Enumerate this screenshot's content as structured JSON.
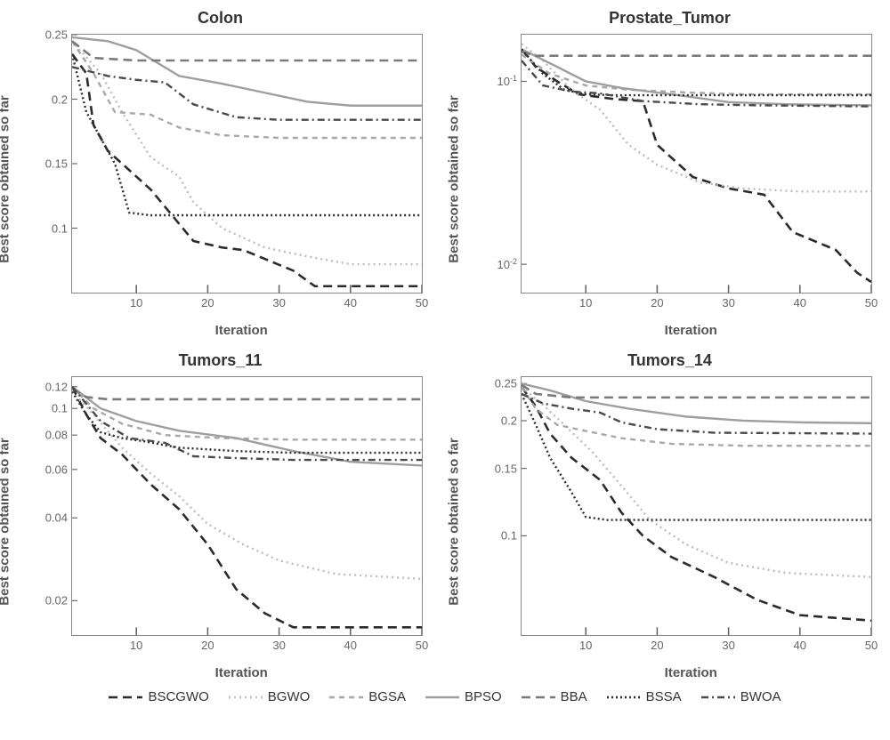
{
  "legend": {
    "items": [
      {
        "label": "BSCGWO",
        "color": "#2b2b2b",
        "dash": "10,6",
        "width": 2.6
      },
      {
        "label": "BGWO",
        "color": "#bdbdbd",
        "dash": "2,4",
        "width": 2.4
      },
      {
        "label": "BGSA",
        "color": "#a8a8a8",
        "dash": "6,5",
        "width": 2.4
      },
      {
        "label": "BPSO",
        "color": "#9e9e9e",
        "dash": "",
        "width": 2.4
      },
      {
        "label": "BBA",
        "color": "#7a7a7a",
        "dash": "10,6",
        "width": 2.6
      },
      {
        "label": "BSSA",
        "color": "#2b2b2b",
        "dash": "2,3",
        "width": 2.4
      },
      {
        "label": "BWOA",
        "color": "#4a4a4a",
        "dash": "8,4,2,4",
        "width": 2.4
      }
    ]
  },
  "xlabel": "Iteration",
  "ylabel": "Best score obtained so far",
  "x_range": [
    1,
    50
  ],
  "x_ticks": [
    10,
    20,
    30,
    40,
    50
  ],
  "panels": [
    {
      "title": "Colon",
      "scale": "linear",
      "ylim": [
        0.05,
        0.25
      ],
      "yticks": [
        0.25,
        0.2,
        0.15,
        0.1
      ],
      "yticklabels": [
        "0.25",
        "0.2",
        "0.15",
        "0.1"
      ],
      "series": {
        "BSCGWO": [
          [
            1,
            0.235
          ],
          [
            3,
            0.22
          ],
          [
            4,
            0.18
          ],
          [
            6,
            0.16
          ],
          [
            8,
            0.15
          ],
          [
            12,
            0.13
          ],
          [
            15,
            0.11
          ],
          [
            18,
            0.09
          ],
          [
            22,
            0.085
          ],
          [
            25,
            0.083
          ],
          [
            32,
            0.067
          ],
          [
            35,
            0.055
          ],
          [
            50,
            0.055
          ]
        ],
        "BGWO": [
          [
            1,
            0.245
          ],
          [
            5,
            0.22
          ],
          [
            8,
            0.19
          ],
          [
            12,
            0.155
          ],
          [
            16,
            0.14
          ],
          [
            18,
            0.12
          ],
          [
            22,
            0.1
          ],
          [
            28,
            0.085
          ],
          [
            34,
            0.078
          ],
          [
            40,
            0.072
          ],
          [
            50,
            0.072
          ]
        ],
        "BGSA": [
          [
            1,
            0.245
          ],
          [
            4,
            0.22
          ],
          [
            7,
            0.19
          ],
          [
            12,
            0.188
          ],
          [
            16,
            0.178
          ],
          [
            22,
            0.172
          ],
          [
            30,
            0.17
          ],
          [
            50,
            0.17
          ]
        ],
        "BPSO": [
          [
            1,
            0.248
          ],
          [
            6,
            0.245
          ],
          [
            10,
            0.238
          ],
          [
            16,
            0.218
          ],
          [
            22,
            0.212
          ],
          [
            28,
            0.205
          ],
          [
            34,
            0.198
          ],
          [
            40,
            0.195
          ],
          [
            50,
            0.195
          ]
        ],
        "BBA": [
          [
            1,
            0.245
          ],
          [
            4,
            0.232
          ],
          [
            10,
            0.23
          ],
          [
            50,
            0.23
          ]
        ],
        "BSSA": [
          [
            1,
            0.235
          ],
          [
            3,
            0.19
          ],
          [
            5,
            0.17
          ],
          [
            7,
            0.15
          ],
          [
            9,
            0.112
          ],
          [
            12,
            0.11
          ],
          [
            50,
            0.11
          ]
        ],
        "BWOA": [
          [
            1,
            0.225
          ],
          [
            6,
            0.218
          ],
          [
            10,
            0.215
          ],
          [
            14,
            0.213
          ],
          [
            18,
            0.196
          ],
          [
            24,
            0.186
          ],
          [
            30,
            0.184
          ],
          [
            50,
            0.184
          ]
        ]
      }
    },
    {
      "title": "Prostate_Tumor",
      "scale": "log",
      "ylim": [
        0.007,
        0.18
      ],
      "yticks": [
        0.1,
        0.01
      ],
      "yticklabels": [
        "10^-1",
        "10^-2"
      ],
      "series": {
        "BSCGWO": [
          [
            1,
            0.15
          ],
          [
            3,
            0.12
          ],
          [
            6,
            0.1
          ],
          [
            9,
            0.085
          ],
          [
            14,
            0.08
          ],
          [
            18,
            0.078
          ],
          [
            20,
            0.045
          ],
          [
            25,
            0.03
          ],
          [
            30,
            0.026
          ],
          [
            35,
            0.024
          ],
          [
            39,
            0.015
          ],
          [
            45,
            0.012
          ],
          [
            48,
            0.009
          ],
          [
            50,
            0.008
          ]
        ],
        "BGWO": [
          [
            1,
            0.16
          ],
          [
            4,
            0.13
          ],
          [
            8,
            0.09
          ],
          [
            12,
            0.07
          ],
          [
            16,
            0.045
          ],
          [
            20,
            0.035
          ],
          [
            26,
            0.028
          ],
          [
            32,
            0.026
          ],
          [
            40,
            0.025
          ],
          [
            50,
            0.025
          ]
        ],
        "BGSA": [
          [
            1,
            0.14
          ],
          [
            5,
            0.11
          ],
          [
            10,
            0.095
          ],
          [
            16,
            0.09
          ],
          [
            24,
            0.087
          ],
          [
            32,
            0.085
          ],
          [
            50,
            0.085
          ]
        ],
        "BPSO": [
          [
            1,
            0.15
          ],
          [
            6,
            0.12
          ],
          [
            10,
            0.1
          ],
          [
            15,
            0.092
          ],
          [
            22,
            0.085
          ],
          [
            30,
            0.077
          ],
          [
            38,
            0.075
          ],
          [
            50,
            0.074
          ]
        ],
        "BBA": [
          [
            1,
            0.145
          ],
          [
            3,
            0.138
          ],
          [
            50,
            0.138
          ]
        ],
        "BSSA": [
          [
            1,
            0.15
          ],
          [
            4,
            0.11
          ],
          [
            7,
            0.09
          ],
          [
            10,
            0.085
          ],
          [
            14,
            0.084
          ],
          [
            50,
            0.084
          ]
        ],
        "BWOA": [
          [
            1,
            0.13
          ],
          [
            4,
            0.095
          ],
          [
            8,
            0.088
          ],
          [
            12,
            0.086
          ],
          [
            18,
            0.078
          ],
          [
            26,
            0.075
          ],
          [
            34,
            0.074
          ],
          [
            50,
            0.073
          ]
        ]
      }
    },
    {
      "title": "Tumors_11",
      "scale": "log",
      "ylim": [
        0.015,
        0.13
      ],
      "yticks": [
        0.12,
        0.1,
        0.08,
        0.06,
        0.04,
        0.02
      ],
      "yticklabels": [
        "0.12",
        "0.1",
        "0.08",
        "0.06",
        "0.04",
        "0.02"
      ],
      "series": {
        "BSCGWO": [
          [
            1,
            0.12
          ],
          [
            3,
            0.095
          ],
          [
            5,
            0.078
          ],
          [
            8,
            0.068
          ],
          [
            12,
            0.053
          ],
          [
            16,
            0.043
          ],
          [
            20,
            0.032
          ],
          [
            24,
            0.022
          ],
          [
            28,
            0.018
          ],
          [
            32,
            0.016
          ],
          [
            50,
            0.016
          ]
        ],
        "BGWO": [
          [
            1,
            0.115
          ],
          [
            4,
            0.095
          ],
          [
            8,
            0.072
          ],
          [
            12,
            0.058
          ],
          [
            16,
            0.048
          ],
          [
            20,
            0.038
          ],
          [
            25,
            0.032
          ],
          [
            30,
            0.028
          ],
          [
            38,
            0.025
          ],
          [
            50,
            0.024
          ]
        ],
        "BGSA": [
          [
            1,
            0.12
          ],
          [
            4,
            0.1
          ],
          [
            8,
            0.088
          ],
          [
            14,
            0.08
          ],
          [
            22,
            0.078
          ],
          [
            32,
            0.077
          ],
          [
            50,
            0.077
          ]
        ],
        "BPSO": [
          [
            1,
            0.12
          ],
          [
            5,
            0.1
          ],
          [
            10,
            0.09
          ],
          [
            16,
            0.083
          ],
          [
            24,
            0.078
          ],
          [
            32,
            0.07
          ],
          [
            40,
            0.064
          ],
          [
            50,
            0.062
          ]
        ],
        "BBA": [
          [
            1,
            0.118
          ],
          [
            3,
            0.11
          ],
          [
            6,
            0.108
          ],
          [
            50,
            0.108
          ]
        ],
        "BSSA": [
          [
            1,
            0.115
          ],
          [
            3,
            0.095
          ],
          [
            5,
            0.082
          ],
          [
            8,
            0.078
          ],
          [
            11,
            0.076
          ],
          [
            16,
            0.072
          ],
          [
            24,
            0.07
          ],
          [
            32,
            0.069
          ],
          [
            50,
            0.069
          ]
        ],
        "BWOA": [
          [
            1,
            0.12
          ],
          [
            5,
            0.09
          ],
          [
            9,
            0.078
          ],
          [
            14,
            0.075
          ],
          [
            18,
            0.067
          ],
          [
            24,
            0.066
          ],
          [
            32,
            0.065
          ],
          [
            50,
            0.065
          ]
        ]
      }
    },
    {
      "title": "Tumors_14",
      "scale": "log",
      "ylim": [
        0.055,
        0.26
      ],
      "yticks": [
        0.25,
        0.2,
        0.15,
        0.1
      ],
      "yticklabels": [
        "0.25",
        "0.2",
        "0.15",
        "0.1"
      ],
      "series": {
        "BSCGWO": [
          [
            1,
            0.245
          ],
          [
            3,
            0.218
          ],
          [
            5,
            0.185
          ],
          [
            8,
            0.16
          ],
          [
            12,
            0.14
          ],
          [
            15,
            0.115
          ],
          [
            18,
            0.1
          ],
          [
            22,
            0.088
          ],
          [
            28,
            0.078
          ],
          [
            34,
            0.068
          ],
          [
            40,
            0.062
          ],
          [
            50,
            0.06
          ]
        ],
        "BGWO": [
          [
            1,
            0.245
          ],
          [
            4,
            0.22
          ],
          [
            7,
            0.195
          ],
          [
            11,
            0.165
          ],
          [
            15,
            0.135
          ],
          [
            19,
            0.11
          ],
          [
            24,
            0.095
          ],
          [
            30,
            0.085
          ],
          [
            38,
            0.08
          ],
          [
            50,
            0.078
          ]
        ],
        "BGSA": [
          [
            1,
            0.245
          ],
          [
            3,
            0.215
          ],
          [
            6,
            0.195
          ],
          [
            10,
            0.188
          ],
          [
            15,
            0.18
          ],
          [
            22,
            0.174
          ],
          [
            32,
            0.172
          ],
          [
            50,
            0.172
          ]
        ],
        "BPSO": [
          [
            1,
            0.25
          ],
          [
            5,
            0.24
          ],
          [
            10,
            0.225
          ],
          [
            16,
            0.215
          ],
          [
            24,
            0.205
          ],
          [
            32,
            0.2
          ],
          [
            40,
            0.198
          ],
          [
            50,
            0.197
          ]
        ],
        "BBA": [
          [
            1,
            0.248
          ],
          [
            3,
            0.235
          ],
          [
            8,
            0.23
          ],
          [
            50,
            0.23
          ]
        ],
        "BSSA": [
          [
            1,
            0.235
          ],
          [
            3,
            0.195
          ],
          [
            5,
            0.16
          ],
          [
            8,
            0.13
          ],
          [
            10,
            0.112
          ],
          [
            13,
            0.11
          ],
          [
            50,
            0.11
          ]
        ],
        "BWOA": [
          [
            1,
            0.235
          ],
          [
            4,
            0.222
          ],
          [
            8,
            0.215
          ],
          [
            12,
            0.21
          ],
          [
            15,
            0.198
          ],
          [
            20,
            0.19
          ],
          [
            28,
            0.186
          ],
          [
            50,
            0.185
          ]
        ]
      }
    }
  ]
}
